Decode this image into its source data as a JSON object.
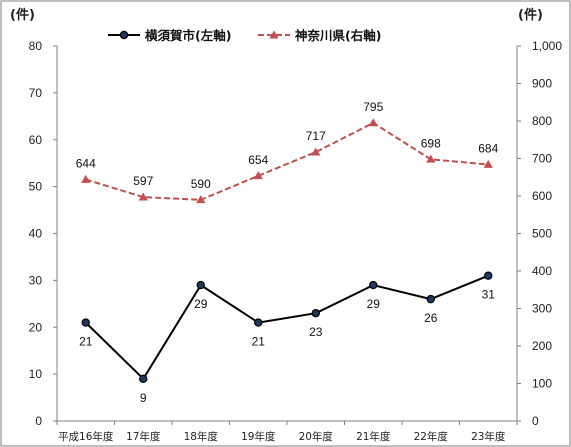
{
  "chart_data": {
    "type": "line",
    "categories": [
      "平成16年度",
      "17年度",
      "18年度",
      "19年度",
      "20年度",
      "21年度",
      "22年度",
      "23年度"
    ],
    "series": [
      {
        "name": "横須賀市(左軸)",
        "axis": "left",
        "values": [
          21,
          9,
          29,
          21,
          23,
          29,
          26,
          31
        ],
        "color": "#000000",
        "line_style": "solid",
        "marker": "circle",
        "marker_fill": "#1f3864",
        "label_position": "below"
      },
      {
        "name": "神奈川県(右軸)",
        "axis": "right",
        "values": [
          644,
          597,
          590,
          654,
          717,
          795,
          698,
          684
        ],
        "color": "#c0504d",
        "line_style": "dashed",
        "marker": "triangle",
        "label_position": "above"
      }
    ],
    "left_axis": {
      "unit_label": "(件)",
      "ylim": [
        0,
        80
      ],
      "ticks": [
        "0",
        "10",
        "20",
        "30",
        "40",
        "50",
        "60",
        "70",
        "80"
      ]
    },
    "right_axis": {
      "unit_label": "(件)",
      "ylim": [
        0,
        1000
      ],
      "ticks": [
        "0",
        "100",
        "200",
        "300",
        "400",
        "500",
        "600",
        "700",
        "800",
        "900",
        "1,000"
      ]
    },
    "grid": false,
    "legend_position": "top-center",
    "frame_color": "#7f7f7f"
  }
}
